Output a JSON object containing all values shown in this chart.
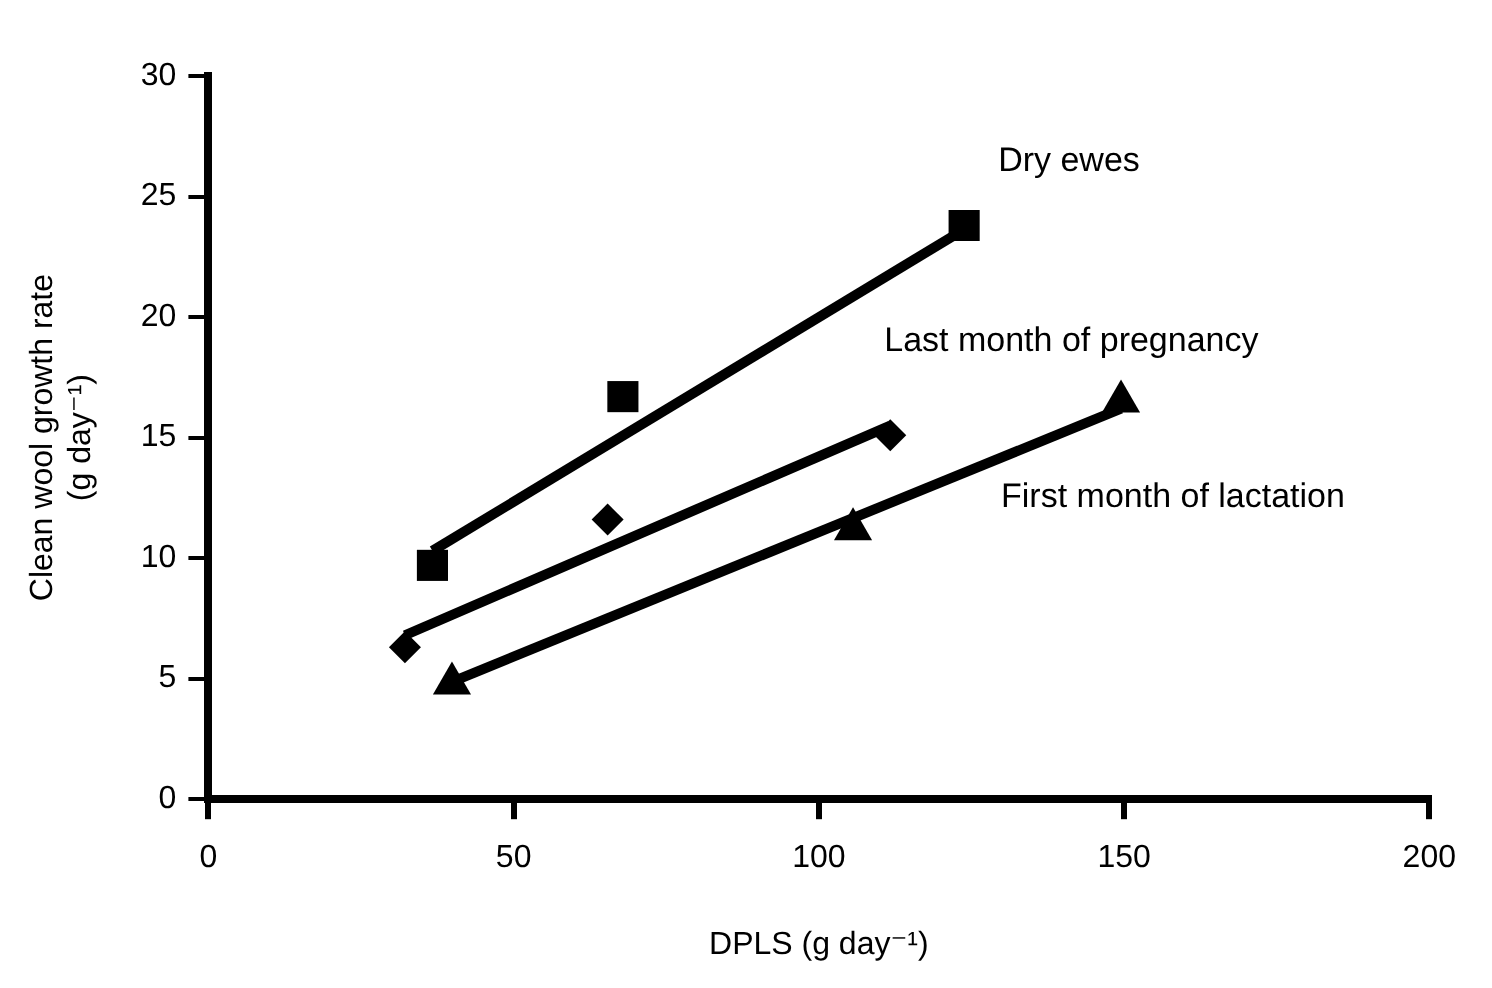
{
  "chart_data": {
    "type": "scatter",
    "xlabel": "DPLS (g day⁻¹)",
    "ylabel": "Clean wool growth rate (g day⁻¹)",
    "xlim": [
      0,
      200
    ],
    "xticks": [
      0,
      50,
      100,
      150,
      200
    ],
    "ylim": [
      0,
      30
    ],
    "yticks": [
      0,
      5,
      10,
      15,
      20,
      25,
      30
    ],
    "grid": false,
    "legend": false,
    "series": [
      {
        "name": "Dry ewes",
        "color": "#000000",
        "marker": "square",
        "x": [
          36.7,
          67.9,
          123.8
        ],
        "values": [
          9.7,
          16.7,
          23.8
        ]
      },
      {
        "name": "Last month of pregnancy",
        "color": "#000000",
        "marker": "diamond",
        "x": [
          32.2,
          65.4,
          111.7
        ],
        "values": [
          6.3,
          11.6,
          15.1
        ]
      },
      {
        "name": "First month of lactation",
        "color": "#000000",
        "marker": "triangle",
        "x": [
          39.9,
          105.6,
          149.5
        ],
        "values": [
          4.8,
          11.2,
          16.5
        ]
      },
      {
        "type": "line",
        "color": "#000000",
        "marker": "none",
        "x": [
          36.7,
          122.9
        ],
        "values": [
          10.3,
          23.5
        ]
      },
      {
        "type": "line",
        "color": "#000000",
        "marker": "none",
        "x": [
          32.2,
          111.7
        ],
        "values": [
          6.8,
          15.5
        ]
      },
      {
        "type": "line",
        "color": "#000000",
        "marker": "none",
        "x": [
          40.2,
          149.5
        ],
        "values": [
          4.9,
          16.2
        ]
      }
    ]
  }
}
